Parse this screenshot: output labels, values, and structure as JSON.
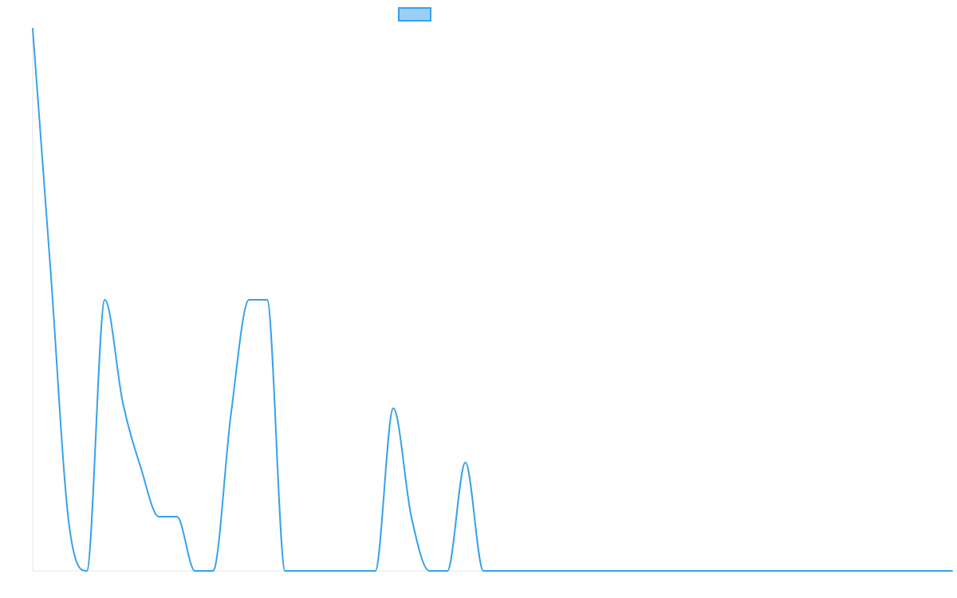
{
  "chart_data": {
    "type": "line",
    "title": "",
    "xlabel": "",
    "ylabel": "",
    "x_count": 52,
    "ylim": [
      0,
      100
    ],
    "grid": false,
    "legend_position": "top-center",
    "series": [
      {
        "color": "#36a2eb",
        "fill": "#9ad0f5",
        "values": [
          100,
          55,
          9,
          0,
          50,
          31,
          19,
          10,
          10,
          0,
          0,
          29,
          50,
          50,
          0,
          0,
          0,
          0,
          0,
          0,
          30,
          10,
          0,
          0,
          20,
          0,
          0,
          0,
          0,
          0,
          0,
          0,
          0,
          0,
          0,
          0,
          0,
          0,
          0,
          0,
          0,
          0,
          0,
          0,
          0,
          0,
          0,
          0,
          0,
          0,
          0,
          0
        ]
      }
    ]
  }
}
